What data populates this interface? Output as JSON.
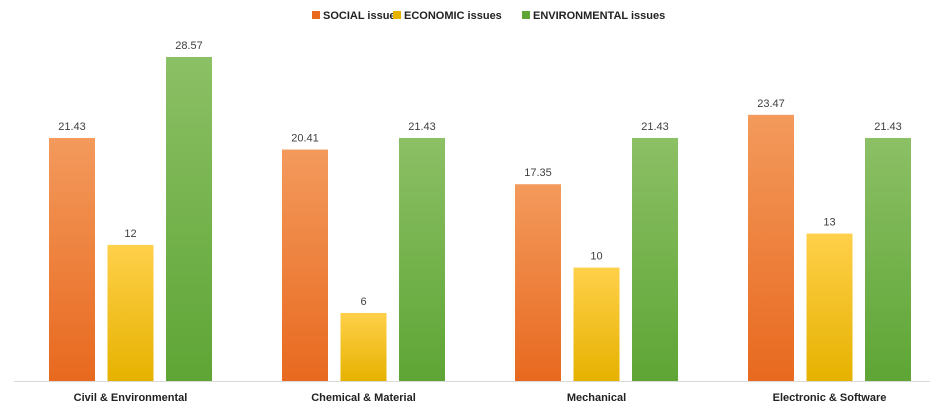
{
  "chart_data": {
    "type": "bar",
    "categories": [
      "Civil & Environmental",
      "Chemical & Material",
      "Mechanical",
      "Electronic & Software"
    ],
    "series": [
      {
        "name": "SOCIAL issues",
        "values": [
          21.43,
          20.41,
          17.35,
          23.47
        ],
        "color_top": "#f39a5c",
        "color_bottom": "#e8691f"
      },
      {
        "name": "ECONOMIC issues",
        "values": [
          12,
          6,
          10,
          13
        ],
        "color_top": "#ffd04a",
        "color_bottom": "#e6b200"
      },
      {
        "name": "ENVIRONMENTAL issues",
        "values": [
          28.57,
          21.43,
          21.43,
          21.43
        ],
        "color_top": "#8cc065",
        "color_bottom": "#5ea535"
      }
    ],
    "data_labels": [
      [
        "21.43",
        "20.41",
        "17.35",
        "23.47"
      ],
      [
        "12",
        "6",
        "10",
        "13"
      ],
      [
        "28.57",
        "21.43",
        "21.43",
        "21.43"
      ]
    ],
    "title": "",
    "xlabel": "",
    "ylabel": "",
    "ylim": [
      0,
      28.57
    ],
    "grid": false,
    "legend_position": "top-center",
    "axis_color": "#d9d9d9"
  }
}
